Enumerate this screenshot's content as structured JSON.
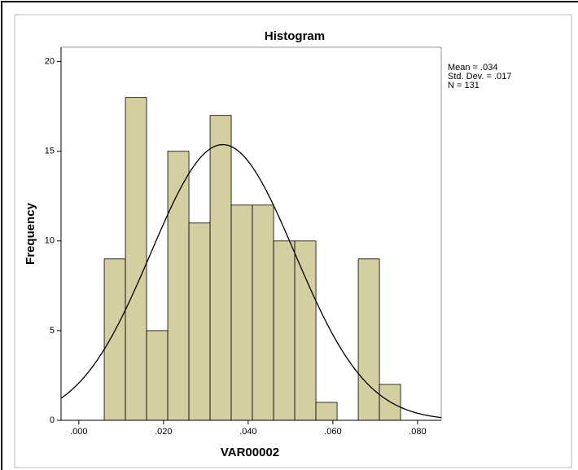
{
  "chart_data": {
    "type": "histogram",
    "title": "Histogram",
    "x_label": "VAR00002",
    "y_label": "Frequency",
    "bins": [
      0.006,
      0.011,
      0.016,
      0.021,
      0.026,
      0.031,
      0.036,
      0.041,
      0.046,
      0.051,
      0.056,
      0.061,
      0.066,
      0.071,
      0.076
    ],
    "values": [
      9,
      18,
      5,
      15,
      11,
      17,
      12,
      12,
      10,
      10,
      1,
      0,
      9,
      2
    ],
    "color": "#d4cfa0",
    "xlim": [
      -0.0042,
      0.0856
    ],
    "xticks": [
      {
        "value": 0,
        "label": ".000"
      },
      {
        "value": 0.02,
        "label": ".020"
      },
      {
        "value": 0.04,
        "label": ".040"
      },
      {
        "value": 0.06,
        "label": ".060"
      },
      {
        "value": 0.08,
        "label": ".080"
      }
    ],
    "ylim": [
      0,
      20.8
    ],
    "yticks": [
      0,
      5,
      10,
      15,
      20
    ],
    "normal_curve": {
      "mean": 0.034,
      "sd": 0.017,
      "n": 131,
      "labels": [
        "Mean = .034",
        "Std. Dev. = .017",
        "N = 131"
      ]
    }
  }
}
